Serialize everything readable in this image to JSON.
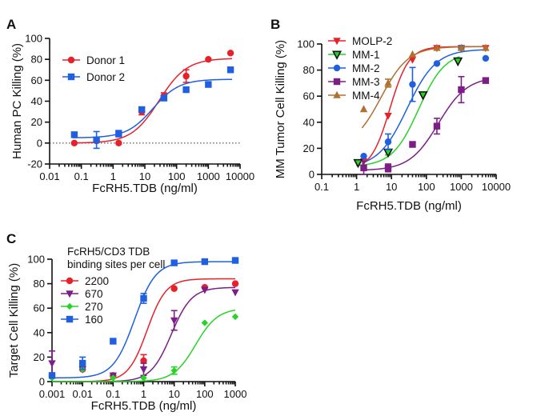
{
  "chart_data": [
    {
      "panel": "A",
      "type": "scatter",
      "xlabel": "FcRH5.TDB (ng/ml)",
      "ylabel": "Human PC Killing (%)",
      "xscale": "log",
      "xlim": [
        0.01,
        10000
      ],
      "ylim": [
        -20,
        100
      ],
      "xticks": [
        "0.01",
        "0.1",
        "1",
        "10",
        "100",
        "1000",
        "10000"
      ],
      "yticks": [
        "-20",
        "0",
        "20",
        "40",
        "60",
        "80",
        "100"
      ],
      "zero_line": true,
      "legend": "top-left",
      "series": [
        {
          "name": "Donor 1",
          "color": "#e8202a",
          "marker": "circle",
          "x": [
            0.06,
            0.3,
            1.5,
            8,
            40,
            200,
            1000,
            5000
          ],
          "y": [
            0,
            2,
            0,
            30,
            45,
            64,
            80,
            86
          ],
          "err": [
            0,
            0,
            0,
            3,
            3,
            6,
            0,
            0
          ],
          "fit": {
            "bottom": 0,
            "top": 81,
            "ec50": 28,
            "hill": 1.0
          }
        },
        {
          "name": "Donor 2",
          "color": "#1f5fe0",
          "marker": "square",
          "x": [
            0.06,
            0.3,
            1.5,
            8,
            40,
            200,
            1000,
            5000
          ],
          "y": [
            8,
            3,
            9,
            32,
            43,
            51,
            56,
            70
          ],
          "err": [
            0,
            8,
            3,
            2,
            2,
            0,
            0,
            0
          ],
          "fit": {
            "bottom": 5,
            "top": 61,
            "ec50": 18,
            "hill": 1.05
          }
        }
      ]
    },
    {
      "panel": "B",
      "type": "scatter",
      "xlabel": "FcRH5.TDB (ng/ml)",
      "ylabel": "MM Tumor Cell Killing (%)",
      "xscale": "log",
      "xlim": [
        0.1,
        10000
      ],
      "ylim": [
        0,
        100
      ],
      "xticks": [
        "0.1",
        "1",
        "10",
        "100",
        "1000",
        "10000"
      ],
      "yticks": [
        "0",
        "20",
        "40",
        "60",
        "80",
        "100"
      ],
      "legend": "top-left",
      "series": [
        {
          "name": "MOLP-2",
          "color": "#e8202a",
          "marker": "triangle-down",
          "x": [
            1.6,
            8,
            40,
            200,
            1000,
            5000
          ],
          "y": [
            10,
            45,
            88,
            97,
            97,
            97
          ],
          "err": [
            0,
            0,
            0,
            0,
            0,
            0
          ],
          "fit": {
            "bottom": 3,
            "top": 98,
            "ec50": 9,
            "hill": 1.6
          }
        },
        {
          "name": "MM-1",
          "color": "#27d327",
          "marker": "triangle-down-open",
          "x": [
            1.1,
            8,
            80,
            800
          ],
          "y": [
            9,
            17,
            61,
            87
          ],
          "err": [
            0,
            2,
            0,
            0
          ],
          "fit": {
            "bottom": 6,
            "top": 94,
            "ec50": 60,
            "hill": 1.15
          }
        },
        {
          "name": "MM-2",
          "color": "#1f5fe0",
          "marker": "circle",
          "x": [
            1.6,
            8,
            40,
            200,
            1000,
            5000
          ],
          "y": [
            14,
            25,
            69,
            85,
            97,
            89
          ],
          "err": [
            0,
            6,
            13,
            0,
            0,
            0
          ],
          "fit": {
            "bottom": 5,
            "top": 96,
            "ec50": 28,
            "hill": 1.05
          }
        },
        {
          "name": "MM-3",
          "color": "#7b1e86",
          "marker": "square",
          "x": [
            1.6,
            8,
            40,
            200,
            1000,
            5000
          ],
          "y": [
            5,
            5,
            23,
            37,
            65,
            72
          ],
          "err": [
            5,
            3,
            2,
            6,
            10,
            2
          ],
          "fit": {
            "bottom": 3,
            "top": 75,
            "ec50": 220,
            "hill": 1.05
          }
        },
        {
          "name": "MM-4",
          "color": "#b07030",
          "marker": "triangle-up",
          "x": [
            1.6,
            8,
            40,
            200,
            1000,
            5000
          ],
          "y": [
            50,
            70,
            92,
            97,
            97,
            97
          ],
          "err": [
            0,
            3,
            0,
            0,
            0,
            0
          ],
          "fit": {
            "bottom": 20,
            "top": 98,
            "ec50": 5,
            "hill": 1.1
          }
        }
      ]
    },
    {
      "panel": "C",
      "type": "scatter",
      "xlabel": "FcRH5.TDB (ng/ml)",
      "ylabel": "Target Cell Killing (%)",
      "xscale": "log",
      "xlim": [
        0.001,
        1000
      ],
      "ylim": [
        0,
        100
      ],
      "xticks": [
        "0.001",
        "0.01",
        "0.1",
        "1",
        "10",
        "100",
        "1000"
      ],
      "yticks": [
        "0",
        "20",
        "40",
        "60",
        "80",
        "100"
      ],
      "legend": "top-left",
      "legend_title": [
        "FcRH5/CD3 TDB",
        "binding sites per cell"
      ],
      "series": [
        {
          "name": "2200",
          "color": "#e8202a",
          "marker": "circle",
          "x": [
            0.001,
            0.01,
            0.1,
            1,
            10,
            100,
            1000
          ],
          "y": [
            5,
            10,
            5,
            17,
            76,
            77,
            80
          ],
          "err": [
            0,
            0,
            0,
            5,
            0,
            0,
            0
          ],
          "fit": {
            "bottom": 0,
            "top": 84,
            "ec50": 1.3,
            "hill": 1.4
          }
        },
        {
          "name": "670",
          "color": "#7b1e86",
          "marker": "triangle-down",
          "x": [
            0.001,
            0.01,
            0.1,
            1,
            10,
            100,
            1000
          ],
          "y": [
            15,
            10,
            5,
            10,
            50,
            75,
            73
          ],
          "err": [
            10,
            0,
            0,
            5,
            8,
            0,
            0
          ],
          "fit": {
            "bottom": 0,
            "top": 77,
            "ec50": 8,
            "hill": 1.3
          }
        },
        {
          "name": "270",
          "color": "#27d327",
          "marker": "diamond",
          "x": [
            0.001,
            0.01,
            0.1,
            1,
            10,
            100,
            1000
          ],
          "y": [
            3,
            10,
            3,
            3,
            9,
            48,
            53
          ],
          "err": [
            0,
            0,
            0,
            0,
            3,
            0,
            0
          ],
          "fit": {
            "bottom": 0,
            "top": 60,
            "ec50": 50,
            "hill": 1.2
          }
        },
        {
          "name": "160",
          "color": "#1f5fe0",
          "marker": "square",
          "x": [
            0.001,
            0.01,
            0.1,
            1,
            10,
            100,
            1000
          ],
          "y": [
            5,
            15,
            33,
            68,
            97,
            98,
            99
          ],
          "err": [
            0,
            5,
            0,
            4,
            0,
            0,
            0
          ],
          "fit": {
            "bottom": 3,
            "top": 98,
            "ec50": 0.5,
            "hill": 1.25
          }
        }
      ]
    }
  ]
}
